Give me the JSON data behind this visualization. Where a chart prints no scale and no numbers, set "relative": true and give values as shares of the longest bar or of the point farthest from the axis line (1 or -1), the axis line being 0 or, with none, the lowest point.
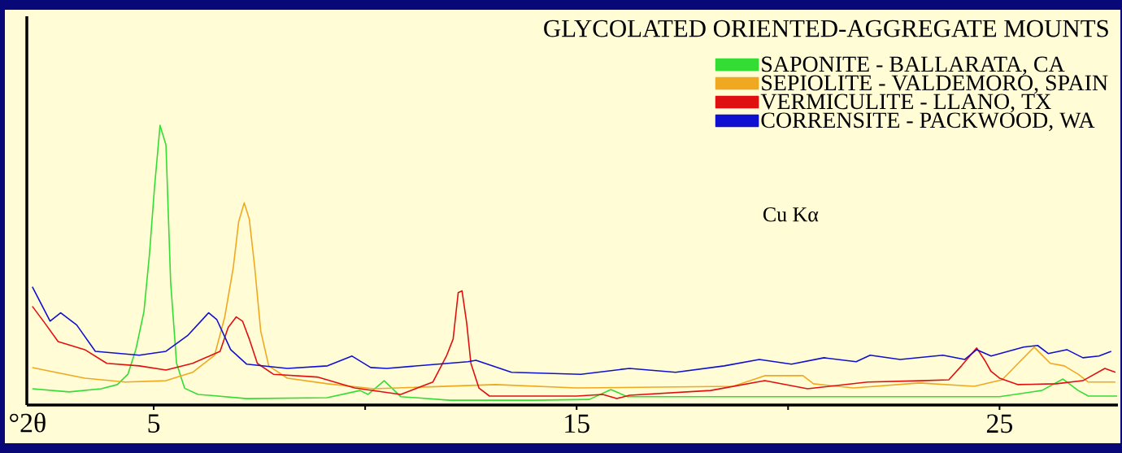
{
  "chart_data": {
    "type": "line",
    "relative": true,
    "title": "GLYCOLATED ORIENTED-AGGREGATE MOUNTS",
    "xlabel": "°2θ",
    "annotations": [
      "Cu Kα"
    ],
    "xlim": [
      2,
      27.8
    ],
    "xticks": [
      5,
      {
        "value": 10,
        "label": null
      },
      15,
      {
        "value": 20,
        "label": null
      },
      25
    ],
    "legend": "top right",
    "series": [
      {
        "name": "SAPONITE - BALLARATA, CA",
        "color": "#33dd33",
        "x": [
          2.13,
          3.0,
          3.76,
          4.14,
          4.39,
          4.58,
          4.77,
          4.9,
          5.02,
          5.15,
          5.29,
          5.4,
          5.54,
          5.73,
          6.05,
          7.2,
          9.1,
          9.88,
          10.07,
          10.45,
          10.84,
          12.0,
          14.0,
          15.3,
          15.81,
          16.2,
          18.7,
          25.0,
          26.0,
          26.5,
          26.86,
          27.1,
          27.78
        ],
        "values": [
          0.058,
          0.047,
          0.058,
          0.073,
          0.11,
          0.2,
          0.335,
          0.54,
          0.78,
          1.0,
          0.93,
          0.44,
          0.15,
          0.06,
          0.038,
          0.023,
          0.026,
          0.052,
          0.038,
          0.087,
          0.03,
          0.017,
          0.017,
          0.02,
          0.055,
          0.03,
          0.03,
          0.03,
          0.052,
          0.093,
          0.052,
          0.032,
          0.032
        ]
      },
      {
        "name": "SEPIOLITE - VALDEMORO, SPAIN",
        "color": "#f0a820",
        "x": [
          2.13,
          3.37,
          4.33,
          5.29,
          5.92,
          6.44,
          6.68,
          6.88,
          7.01,
          7.14,
          7.26,
          7.39,
          7.53,
          7.72,
          8.16,
          9.11,
          10.2,
          13.08,
          15.0,
          18.7,
          19.45,
          20.35,
          20.6,
          21.55,
          23.1,
          24.4,
          25.06,
          25.44,
          25.82,
          26.2,
          26.53,
          26.86,
          27.1,
          27.74
        ],
        "values": [
          0.134,
          0.096,
          0.082,
          0.087,
          0.117,
          0.178,
          0.315,
          0.49,
          0.656,
          0.723,
          0.665,
          0.49,
          0.265,
          0.14,
          0.096,
          0.076,
          0.058,
          0.073,
          0.061,
          0.067,
          0.105,
          0.105,
          0.076,
          0.061,
          0.079,
          0.067,
          0.09,
          0.149,
          0.207,
          0.149,
          0.14,
          0.11,
          0.082,
          0.082
        ]
      },
      {
        "name": "VERMICULITE - LLANO, TX",
        "color": "#e01010",
        "x": [
          2.13,
          2.42,
          2.74,
          3.37,
          3.89,
          4.66,
          5.29,
          5.92,
          6.57,
          6.76,
          6.95,
          7.1,
          7.26,
          7.45,
          7.83,
          8.87,
          9.75,
          10.84,
          11.6,
          11.93,
          12.08,
          12.2,
          12.29,
          12.4,
          12.5,
          12.69,
          12.94,
          15.0,
          15.62,
          15.95,
          16.25,
          18.17,
          19.45,
          20.46,
          21.88,
          23.14,
          23.8,
          24.1,
          24.46,
          24.65,
          24.8,
          25.0,
          25.44,
          26.34,
          26.97,
          27.49,
          27.74
        ],
        "values": [
          0.353,
          0.294,
          0.227,
          0.198,
          0.149,
          0.14,
          0.125,
          0.149,
          0.192,
          0.277,
          0.315,
          0.3,
          0.236,
          0.149,
          0.11,
          0.1,
          0.061,
          0.038,
          0.082,
          0.178,
          0.236,
          0.402,
          0.408,
          0.294,
          0.149,
          0.061,
          0.032,
          0.032,
          0.038,
          0.023,
          0.035,
          0.052,
          0.087,
          0.058,
          0.082,
          0.087,
          0.09,
          0.14,
          0.204,
          0.16,
          0.12,
          0.096,
          0.073,
          0.076,
          0.087,
          0.131,
          0.117
        ]
      },
      {
        "name": "CORRENSITE - PACKWOOD, WA",
        "color": "#1010d0",
        "x": [
          2.13,
          2.55,
          2.8,
          3.18,
          3.62,
          4.66,
          5.29,
          5.8,
          6.3,
          6.49,
          6.82,
          7.2,
          8.16,
          9.11,
          9.69,
          10.13,
          10.51,
          12.43,
          12.62,
          13.46,
          15.1,
          16.25,
          17.34,
          18.49,
          19.32,
          20.08,
          20.85,
          21.61,
          21.94,
          22.65,
          23.66,
          24.18,
          24.46,
          24.8,
          25.57,
          25.9,
          26.15,
          26.59,
          26.97,
          27.35,
          27.64
        ],
        "values": [
          0.423,
          0.3,
          0.33,
          0.286,
          0.192,
          0.178,
          0.192,
          0.248,
          0.33,
          0.306,
          0.198,
          0.146,
          0.131,
          0.14,
          0.175,
          0.134,
          0.131,
          0.155,
          0.16,
          0.117,
          0.11,
          0.131,
          0.117,
          0.14,
          0.163,
          0.146,
          0.169,
          0.155,
          0.178,
          0.163,
          0.178,
          0.163,
          0.198,
          0.175,
          0.207,
          0.213,
          0.184,
          0.198,
          0.169,
          0.175,
          0.192
        ]
      }
    ]
  }
}
